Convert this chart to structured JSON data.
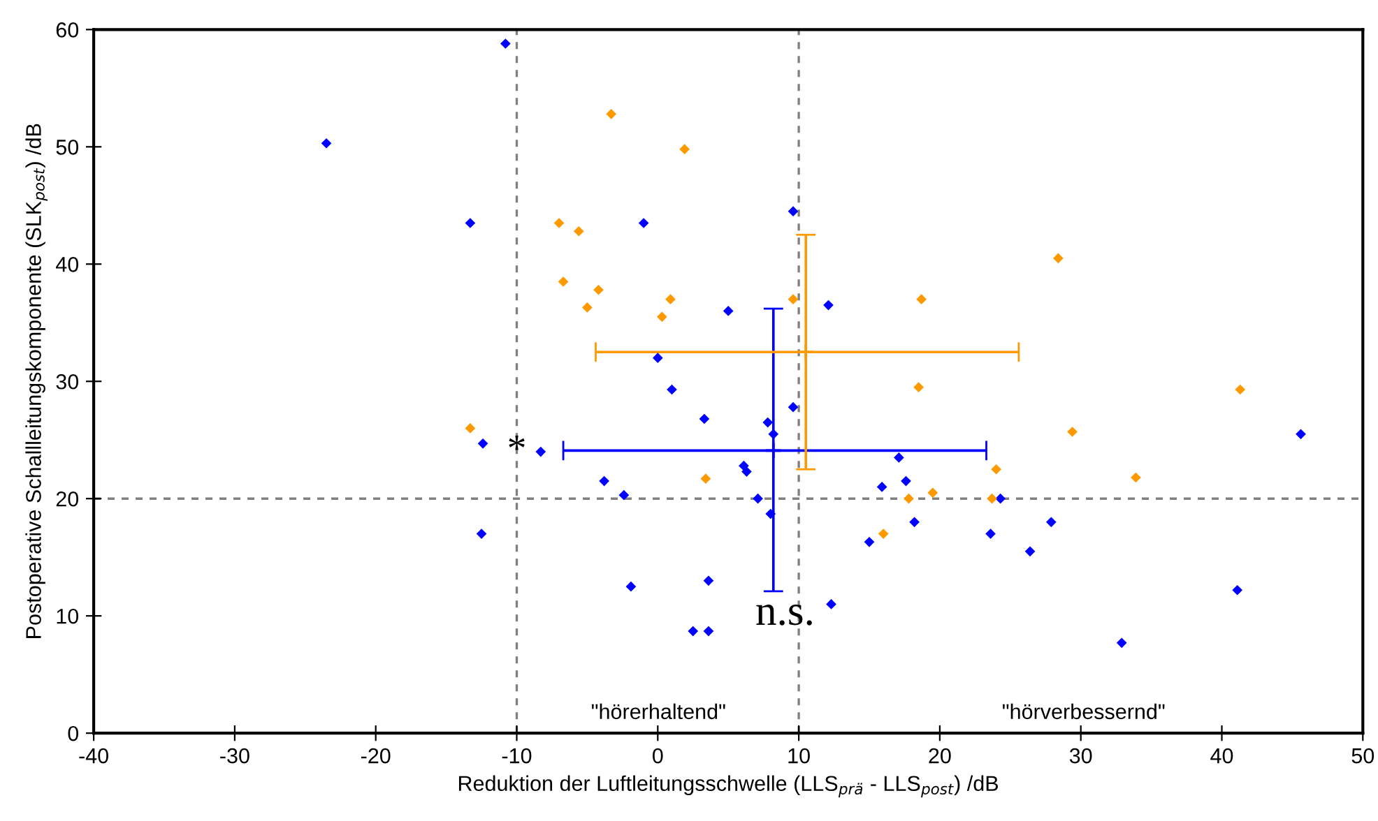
{
  "chart_data": {
    "type": "scatter",
    "xlabel": "Reduktion der Luftleitungsschwelle (LLS$_{prä}$ - LLS$_{post}$) /dB",
    "ylabel": "Postoperative Schallleitungskomponente (SLK$_{post}$) /dB",
    "xlim": [
      -40,
      50
    ],
    "xticks": [
      -40,
      -30,
      -20,
      -10,
      0,
      10,
      20,
      30,
      40,
      50
    ],
    "ylim": [
      0,
      60
    ],
    "yticks": [
      0,
      10,
      20,
      30,
      40,
      50,
      60
    ],
    "grid": false,
    "legend": false,
    "marker": "diamond",
    "series": [
      {
        "color": "#0000ff",
        "x": [
          -23.5,
          -10.8,
          -13.3,
          -1,
          9.6,
          12.1,
          5,
          0,
          1,
          -12.4,
          -8.3,
          -12.5,
          -3.8,
          -2.4,
          -1.9,
          2.5,
          3.6,
          3.6,
          3.3,
          7.8,
          8.2,
          9.6,
          6.1,
          6.3,
          7.1,
          8,
          12.3,
          15,
          15.9,
          17.1,
          17.6,
          18.2,
          23.6,
          24.3,
          26.4,
          27.9,
          32.9,
          41.1,
          45.6
        ],
        "values": [
          50.3,
          58.8,
          43.5,
          43.5,
          44.5,
          36.5,
          36,
          32,
          29.3,
          24.7,
          24,
          17,
          21.5,
          20.3,
          12.5,
          8.7,
          8.7,
          13,
          26.8,
          26.5,
          25.5,
          27.8,
          22.8,
          22.3,
          20,
          18.7,
          11,
          16.3,
          21,
          23.5,
          21.5,
          18,
          17,
          20,
          15.5,
          18,
          7.7,
          12.2,
          25.5
        ]
      },
      {
        "color": "#ff9900",
        "x": [
          -3.3,
          1.9,
          -7,
          -5.6,
          -6.7,
          -4.2,
          -5,
          0.3,
          0.9,
          9.6,
          18.7,
          28.4,
          -13.3,
          3.4,
          16,
          17.8,
          19.5,
          24,
          23.7,
          29.4,
          33.9,
          41.3,
          18.5
        ],
        "values": [
          52.8,
          49.8,
          43.5,
          42.8,
          38.5,
          37.8,
          36.3,
          35.5,
          37,
          37,
          37,
          40.5,
          26,
          21.7,
          17,
          20,
          20.5,
          22.5,
          20,
          25.7,
          21.8,
          29.3,
          29.5
        ]
      },
      {
        "color": "#0000ff",
        "marker": "cross",
        "x": [
          8.2
        ],
        "values": [
          24.1
        ],
        "errors": [
          [
            12.1,
            36.2
          ]
        ],
        "xerrors": [
          [
            -6.7,
            23.3
          ]
        ]
      },
      {
        "color": "#ff9900",
        "marker": "cross",
        "x": [
          10.5
        ],
        "values": [
          32.5
        ],
        "errors": [
          [
            22.5,
            42.5
          ]
        ],
        "xerrors": [
          [
            -4.4,
            25.6
          ]
        ]
      }
    ],
    "ref_lines": [
      {
        "axis": "x",
        "value": -10,
        "color": "#808080",
        "line_style": "dashed"
      },
      {
        "axis": "x",
        "value": 10,
        "color": "#808080",
        "line_style": "dashed"
      },
      {
        "axis": "y",
        "value": 20,
        "color": "#808080",
        "line_style": "dashed"
      }
    ],
    "annotations": [
      {
        "text": "*",
        "x": -10,
        "y": 24
      },
      {
        "text": "n.s.",
        "x": 8.2,
        "y": 12.1
      },
      "\"hörerhaltend\"",
      "\"hörverbessernd\""
    ]
  }
}
